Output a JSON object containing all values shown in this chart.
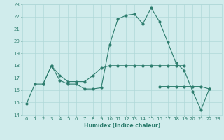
{
  "xlabel": "Humidex (Indice chaleur)",
  "x": [
    0,
    1,
    2,
    3,
    4,
    5,
    6,
    7,
    8,
    9,
    10,
    11,
    12,
    13,
    14,
    15,
    16,
    17,
    18,
    19,
    20,
    21,
    22,
    23
  ],
  "line1": [
    14.9,
    16.5,
    16.5,
    18.0,
    16.8,
    16.5,
    16.5,
    16.1,
    16.1,
    16.2,
    19.7,
    21.8,
    22.1,
    22.2,
    21.4,
    22.7,
    21.6,
    19.9,
    18.2,
    17.6,
    15.9,
    14.4,
    16.1,
    null
  ],
  "line2": [
    null,
    null,
    16.5,
    18.0,
    17.2,
    16.7,
    16.7,
    16.7,
    17.2,
    17.8,
    18.0,
    18.0,
    18.0,
    18.0,
    18.0,
    18.0,
    18.0,
    18.0,
    18.0,
    18.0,
    null,
    null,
    null,
    null
  ],
  "line3": [
    null,
    null,
    null,
    null,
    null,
    null,
    null,
    null,
    null,
    null,
    null,
    null,
    null,
    null,
    null,
    null,
    16.3,
    16.3,
    16.3,
    16.3,
    16.3,
    16.3,
    16.1,
    null
  ],
  "ylim": [
    14,
    23
  ],
  "xlim": [
    -0.5,
    23.5
  ],
  "color": "#2d7d6e",
  "bg_color": "#d0ecec",
  "grid_color": "#b0d8d8",
  "tick_color": "#2d7d6e",
  "yticks": [
    14,
    15,
    16,
    17,
    18,
    19,
    20,
    21,
    22,
    23
  ],
  "xticks": [
    0,
    1,
    2,
    3,
    4,
    5,
    6,
    7,
    8,
    9,
    10,
    11,
    12,
    13,
    14,
    15,
    16,
    17,
    18,
    19,
    20,
    21,
    22,
    23
  ]
}
